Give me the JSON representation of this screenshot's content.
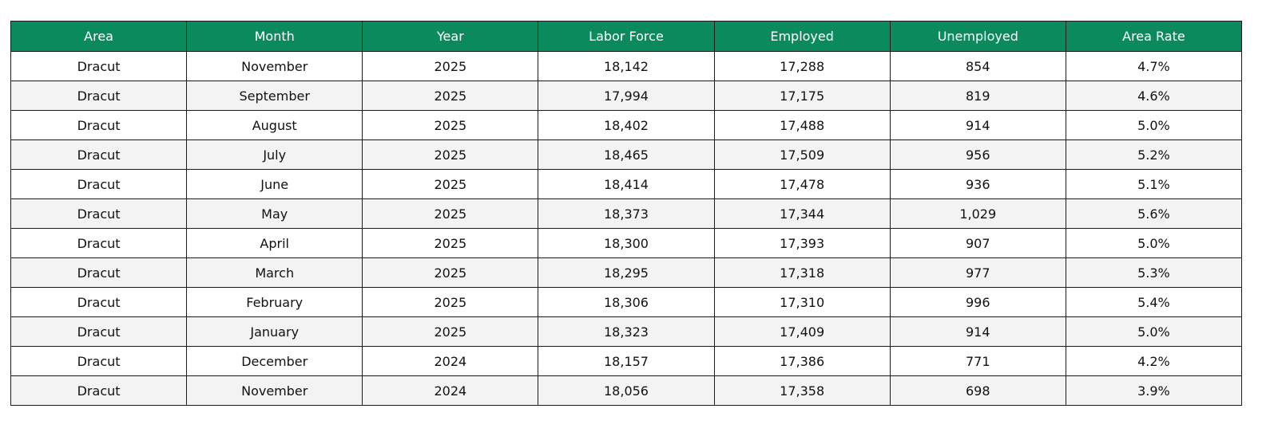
{
  "table": {
    "header": [
      "Area",
      "Month",
      "Year",
      "Labor Force",
      "Employed",
      "Unemployed",
      "Area Rate"
    ],
    "rows": [
      [
        "Dracut",
        "November",
        "2025",
        "18,142",
        "17,288",
        "854",
        "4.7%"
      ],
      [
        "Dracut",
        "September",
        "2025",
        "17,994",
        "17,175",
        "819",
        "4.6%"
      ],
      [
        "Dracut",
        "August",
        "2025",
        "18,402",
        "17,488",
        "914",
        "5.0%"
      ],
      [
        "Dracut",
        "July",
        "2025",
        "18,465",
        "17,509",
        "956",
        "5.2%"
      ],
      [
        "Dracut",
        "June",
        "2025",
        "18,414",
        "17,478",
        "936",
        "5.1%"
      ],
      [
        "Dracut",
        "May",
        "2025",
        "18,373",
        "17,344",
        "1,029",
        "5.6%"
      ],
      [
        "Dracut",
        "April",
        "2025",
        "18,300",
        "17,393",
        "907",
        "5.0%"
      ],
      [
        "Dracut",
        "March",
        "2025",
        "18,295",
        "17,318",
        "977",
        "5.3%"
      ],
      [
        "Dracut",
        "February",
        "2025",
        "18,306",
        "17,310",
        "996",
        "5.4%"
      ],
      [
        "Dracut",
        "January",
        "2025",
        "18,323",
        "17,409",
        "914",
        "5.0%"
      ],
      [
        "Dracut",
        "December",
        "2024",
        "18,157",
        "17,386",
        "771",
        "4.2%"
      ],
      [
        "Dracut",
        "November",
        "2024",
        "18,056",
        "17,358",
        "698",
        "3.9%"
      ]
    ]
  }
}
